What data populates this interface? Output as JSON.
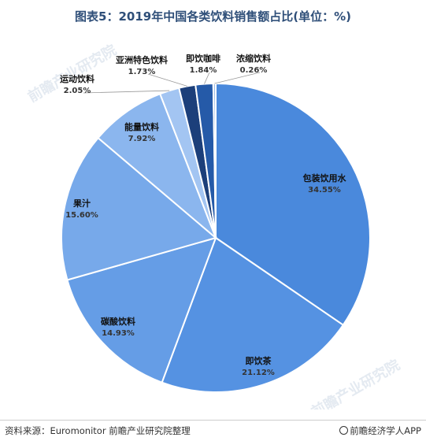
{
  "title": "图表5：2019年中国各类饮料销售额占比(单位：%)",
  "footer": {
    "source": "资料来源：Euromonitor 前瞻产业研究院整理",
    "brand": "前瞻经济学人APP"
  },
  "watermark": "前瞻产业研究院",
  "chart_data": {
    "type": "pie",
    "title": "图表5：2019年中国各类饮料销售额占比(单位：%)",
    "start_angle_deg": 0,
    "direction": "clockwise",
    "slices": [
      {
        "name": "包装饮用水",
        "value": 34.55,
        "color": "#4a89dc"
      },
      {
        "name": "即饮茶",
        "value": 21.12,
        "color": "#5592e2"
      },
      {
        "name": "碳酸饮料",
        "value": 14.93,
        "color": "#659de6"
      },
      {
        "name": "果汁",
        "value": 15.6,
        "color": "#77a9ea"
      },
      {
        "name": "能量饮料",
        "value": 7.92,
        "color": "#8bb6ee"
      },
      {
        "name": "运动饮料",
        "value": 2.05,
        "color": "#a3c5f2"
      },
      {
        "name": "亚洲特色饮料",
        "value": 1.73,
        "color": "#1c3f7a"
      },
      {
        "name": "即饮咖啡",
        "value": 1.84,
        "color": "#255aa8"
      },
      {
        "name": "浓缩饮料",
        "value": 0.26,
        "color": "#9fbde6"
      }
    ]
  }
}
